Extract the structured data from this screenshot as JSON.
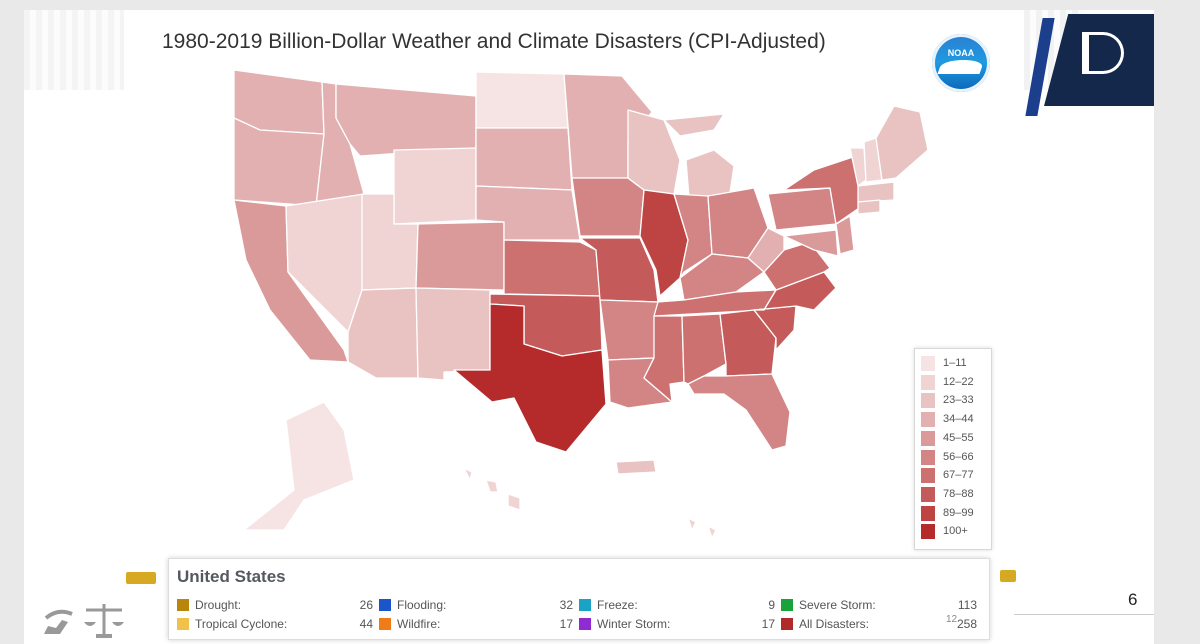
{
  "title": "1980-2019 Billion-Dollar Weather and Climate Disasters (CPI-Adjusted)",
  "logos": {
    "noaa": {
      "icon": "noaa-logo-icon",
      "text": "NOAA"
    },
    "agency": {
      "icon": "d-leaf-logo-icon"
    }
  },
  "colors": {
    "c1": "#f6e4e4",
    "c2": "#f0d4d4",
    "c3": "#e9c2c2",
    "c4": "#e2b0b0",
    "c5": "#da9a9a",
    "c6": "#d38585",
    "c7": "#cc7070",
    "c8": "#c55a5a",
    "c9": "#be4444",
    "c10": "#b52a2a",
    "border": "#ffffff"
  },
  "legend": {
    "items": [
      {
        "label": "1–11",
        "color": "#f6e4e4"
      },
      {
        "label": "12–22",
        "color": "#f0d4d4"
      },
      {
        "label": "23–33",
        "color": "#e9c2c2"
      },
      {
        "label": "34–44",
        "color": "#e2b0b0"
      },
      {
        "label": "45–55",
        "color": "#da9a9a"
      },
      {
        "label": "56–66",
        "color": "#d38585"
      },
      {
        "label": "67–77",
        "color": "#cc7070"
      },
      {
        "label": "78–88",
        "color": "#c55a5a"
      },
      {
        "label": "89–99",
        "color": "#be4444"
      },
      {
        "label": "100+",
        "color": "#b52a2a"
      }
    ]
  },
  "summary": {
    "region": "United States",
    "categories": [
      {
        "name": "Drought:",
        "count": "26",
        "color": "#b8860b"
      },
      {
        "name": "Flooding:",
        "count": "32",
        "color": "#1a56c9"
      },
      {
        "name": "Freeze:",
        "count": "9",
        "color": "#1ba3c6"
      },
      {
        "name": "Severe Storm:",
        "count": "113",
        "color": "#19a33b"
      },
      {
        "name": "Tropical Cyclone:",
        "count": "44",
        "color": "#f0c24b"
      },
      {
        "name": "Wildfire:",
        "count": "17",
        "color": "#f07c19"
      },
      {
        "name": "Winter Storm:",
        "count": "17",
        "color": "#8e2bd1"
      },
      {
        "name": "All Disasters:",
        "count": "258",
        "color": "#b02a2a"
      }
    ]
  },
  "page_number": "6",
  "footer_small": "12"
}
